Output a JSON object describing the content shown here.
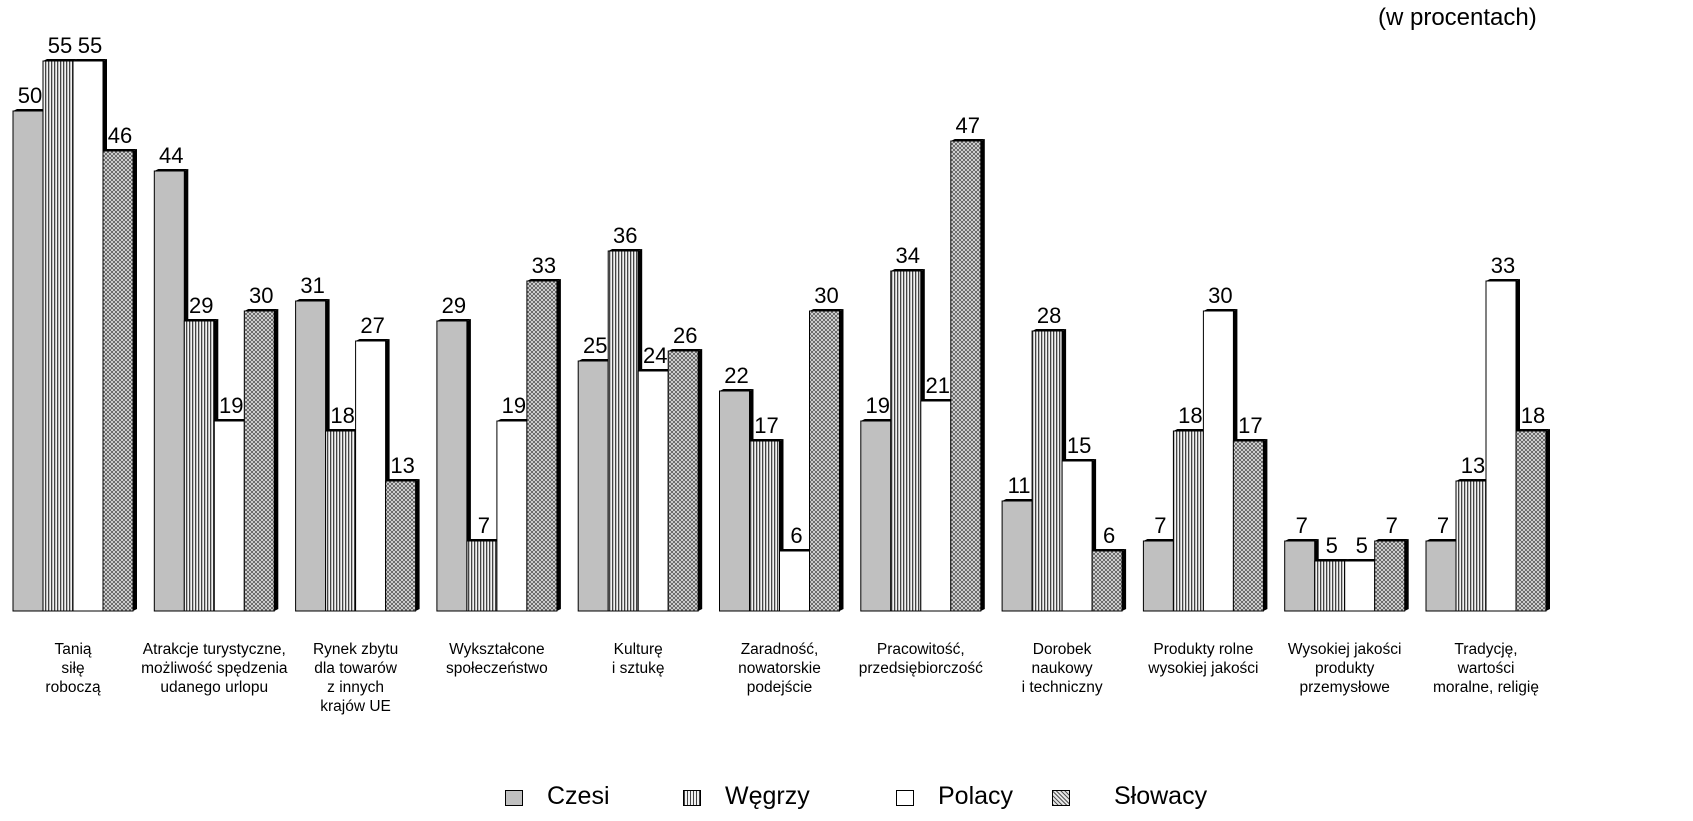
{
  "unit_note": "(w procentach)",
  "chart_data": {
    "type": "bar",
    "categories": [
      "Tanią\nsiłę\nroboczą",
      "Atrakcje turystyczne,\nmożliwość spędzenia\nudanego urlopu",
      "Rynek zbytu\ndla towarów\nz innych\nkrajów UE",
      "Wykształcone\nspołeczeństwo",
      "Kulturę\ni sztukę",
      "Zaradność,\nnowatorskie\npodejście",
      "Pracowitość,\nprzedsiębiorczość",
      "Dorobek\nnaukowy\ni techniczny",
      "Produkty rolne\nwysokiej jakości",
      "Wysokiej jakości\nprodukty\nprzemysłowe",
      "Tradycję,\nwartości\nmoralne, religię"
    ],
    "series": [
      {
        "name": "Czesi",
        "values": [
          50,
          44,
          31,
          29,
          25,
          22,
          19,
          11,
          7,
          7,
          7
        ],
        "pattern": "solid",
        "color": "#c0c0c0"
      },
      {
        "name": "Węgrzy",
        "values": [
          55,
          29,
          18,
          7,
          36,
          17,
          34,
          28,
          18,
          5,
          13
        ],
        "pattern": "vertical-lines",
        "color": "#d0d0d0"
      },
      {
        "name": "Polacy",
        "values": [
          55,
          19,
          27,
          19,
          24,
          6,
          21,
          15,
          30,
          5,
          33
        ],
        "pattern": "solid",
        "color": "#ffffff"
      },
      {
        "name": "Słowacy",
        "values": [
          46,
          30,
          13,
          33,
          26,
          30,
          47,
          6,
          17,
          7,
          18
        ],
        "pattern": "crosshatch",
        "color": "#c8c8c8"
      }
    ],
    "ylim": [
      0,
      60
    ],
    "data_labels": true,
    "grid": false,
    "legend": "bottom",
    "xlabel": "",
    "ylabel": ""
  }
}
